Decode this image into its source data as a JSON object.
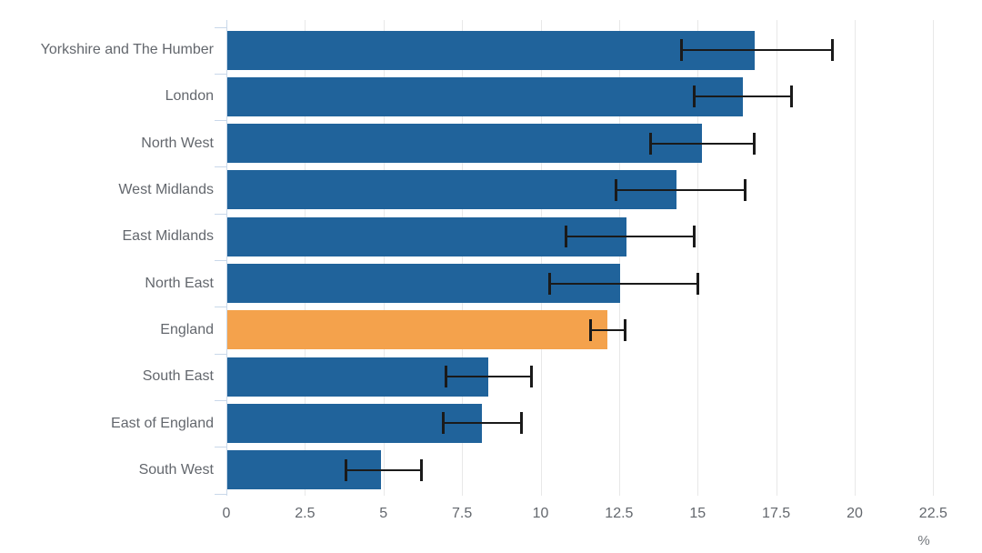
{
  "chart_data": {
    "type": "bar",
    "orientation": "horizontal",
    "title": "",
    "xlabel": "%",
    "ylabel": "",
    "xlim": [
      0,
      22.9
    ],
    "grid": "vertical",
    "legend": "none",
    "x_tick_values": [
      0,
      2.5,
      5,
      7.5,
      10,
      12.5,
      15,
      17.5,
      20,
      22.5
    ],
    "x_tick_labels": [
      "0",
      "2.5",
      "5",
      "7.5",
      "10",
      "12.5",
      "15",
      "17.5",
      "20",
      "22.5"
    ],
    "categories": [
      "Yorkshire and The Humber",
      "London",
      "North West",
      "West Midlands",
      "East Midlands",
      "North East",
      "England",
      "South East",
      "East of England",
      "South West"
    ],
    "series": [
      {
        "name": "value",
        "values": [
          16.8,
          16.4,
          15.1,
          14.3,
          12.7,
          12.5,
          12.1,
          8.3,
          8.1,
          4.9
        ]
      },
      {
        "name": "ci_low",
        "values": [
          14.5,
          14.9,
          13.5,
          12.4,
          10.8,
          10.3,
          11.6,
          7.0,
          6.9,
          3.8
        ]
      },
      {
        "name": "ci_high",
        "values": [
          19.3,
          18.0,
          16.8,
          16.5,
          14.9,
          15.0,
          12.7,
          9.7,
          9.4,
          6.2
        ]
      }
    ],
    "highlight_category": "England",
    "colors": {
      "bar": "#20639b",
      "highlight_bar": "#f4a24c",
      "error": "#1a1a1a",
      "grid": "#e8e8e8",
      "axis": "#c9d8ea",
      "text": "#63676d"
    }
  }
}
